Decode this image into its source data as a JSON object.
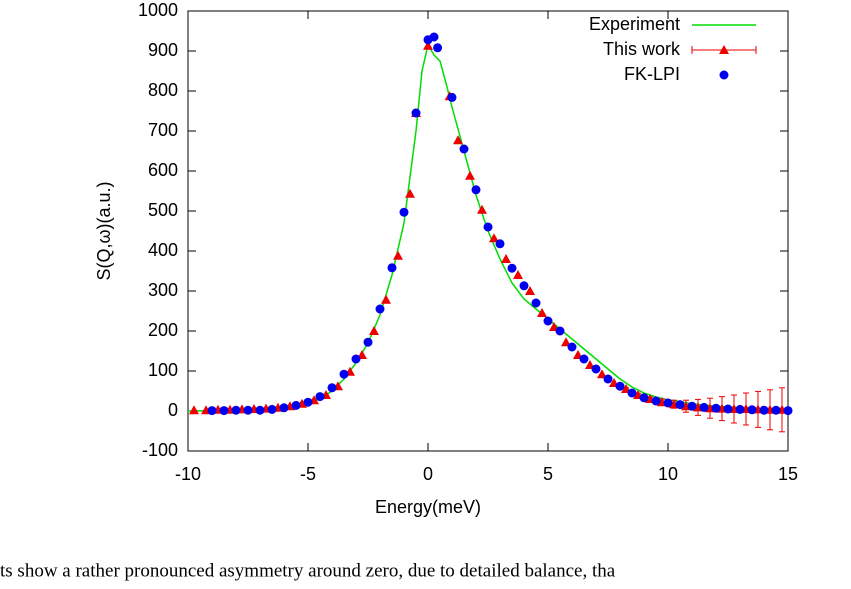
{
  "chart_data": {
    "type": "line",
    "xlabel": "Energy(meV)",
    "ylabel": "S(Q,ω)(a.u.)",
    "xlim": [
      -10,
      15
    ],
    "xticks": [
      -10,
      -5,
      0,
      5,
      10,
      15
    ],
    "ylim": [
      -100,
      1000
    ],
    "yticks": [
      -100,
      0,
      100,
      200,
      300,
      400,
      500,
      600,
      700,
      800,
      900,
      1000
    ],
    "grid": false,
    "legend": "top-right",
    "series": [
      {
        "name": "Experiment",
        "color": "#00dd00",
        "marker": "none",
        "x": [
          -10,
          -9,
          -8,
          -7,
          -6,
          -5,
          -4.5,
          -4,
          -3.5,
          -3,
          -2.5,
          -2,
          -1.5,
          -1,
          -0.5,
          -0.25,
          0,
          0.25,
          0.5,
          0.75,
          1,
          1.5,
          2,
          2.5,
          3,
          3.5,
          4,
          4.5,
          5,
          5.5,
          6,
          6.5,
          7,
          7.5,
          8,
          8.5,
          9,
          9.5,
          10,
          11,
          12,
          13,
          14,
          15
        ],
        "values": [
          0,
          1,
          2,
          4,
          8,
          18,
          30,
          50,
          80,
          120,
          170,
          240,
          340,
          470,
          700,
          850,
          915,
          890,
          875,
          820,
          760,
          650,
          540,
          450,
          380,
          320,
          280,
          255,
          230,
          205,
          180,
          155,
          130,
          105,
          80,
          60,
          45,
          35,
          28,
          18,
          12,
          8,
          5,
          3
        ]
      },
      {
        "name": "This work",
        "color": "#ee0000",
        "marker": "triangle",
        "x": [
          -9.75,
          -9.25,
          -8.75,
          -8.25,
          -7.75,
          -7.25,
          -6.75,
          -6.25,
          -5.75,
          -5.25,
          -4.75,
          -4.25,
          -3.75,
          -3.25,
          -2.75,
          -2.25,
          -1.75,
          -1.25,
          -0.75,
          -0.5,
          0,
          0.9,
          1.25,
          1.75,
          2.25,
          2.75,
          3.25,
          3.75,
          4.25,
          4.75,
          5.25,
          5.75,
          6.25,
          6.75,
          7.25,
          7.75,
          8.25,
          8.75,
          9.25,
          9.75,
          10.25,
          10.75,
          11.25,
          11.75,
          12.25,
          12.75,
          13.25,
          13.75,
          14.25,
          14.75
        ],
        "values": [
          2,
          2,
          3,
          3,
          4,
          5,
          6,
          8,
          12,
          18,
          27,
          40,
          62,
          98,
          140,
          200,
          278,
          388,
          543,
          745,
          913,
          787,
          677,
          588,
          503,
          432,
          380,
          340,
          300,
          245,
          210,
          172,
          140,
          115,
          92,
          70,
          55,
          40,
          30,
          22,
          17,
          12,
          9,
          7,
          6,
          5,
          5,
          4,
          3,
          3
        ],
        "errors": [
          0,
          0,
          0,
          0,
          0,
          0,
          0,
          0,
          0,
          0,
          0,
          0,
          0,
          0,
          0,
          0,
          0,
          0,
          0,
          0,
          0,
          0,
          0,
          0,
          0,
          0,
          0,
          0,
          0,
          0,
          0,
          0,
          0,
          0,
          0,
          0,
          3,
          4,
          5,
          8,
          10,
          15,
          20,
          25,
          30,
          35,
          40,
          45,
          50,
          55
        ]
      },
      {
        "name": "FK-LPI",
        "color": "#0000ee",
        "marker": "circle",
        "x": [
          -9,
          -8.5,
          -8,
          -7.5,
          -7,
          -6.5,
          -6,
          -5.5,
          -5,
          -4.5,
          -4,
          -3.5,
          -3,
          -2.5,
          -2,
          -1.5,
          -1,
          -0.5,
          0,
          0.25,
          0.4,
          1,
          1.5,
          2,
          2.5,
          3,
          3.5,
          4,
          4.5,
          5,
          5.5,
          6,
          6.5,
          7,
          7.5,
          8,
          8.5,
          9,
          9.5,
          10,
          10.5,
          11,
          11.5,
          12,
          12.5,
          13,
          13.5,
          14,
          14.5,
          15
        ],
        "values": [
          1,
          1,
          2,
          2,
          2,
          4,
          8,
          14,
          22,
          36,
          58,
          92,
          130,
          172,
          255,
          358,
          497,
          745,
          928,
          935,
          908,
          784,
          655,
          553,
          460,
          418,
          357,
          313,
          270,
          225,
          200,
          160,
          130,
          105,
          80,
          62,
          45,
          33,
          25,
          20,
          16,
          12,
          9,
          7,
          5,
          4,
          3,
          2,
          2,
          1
        ]
      }
    ]
  },
  "body_text": "ts show a rather pronounced asymmetry around zero, due to detailed balance, tha"
}
